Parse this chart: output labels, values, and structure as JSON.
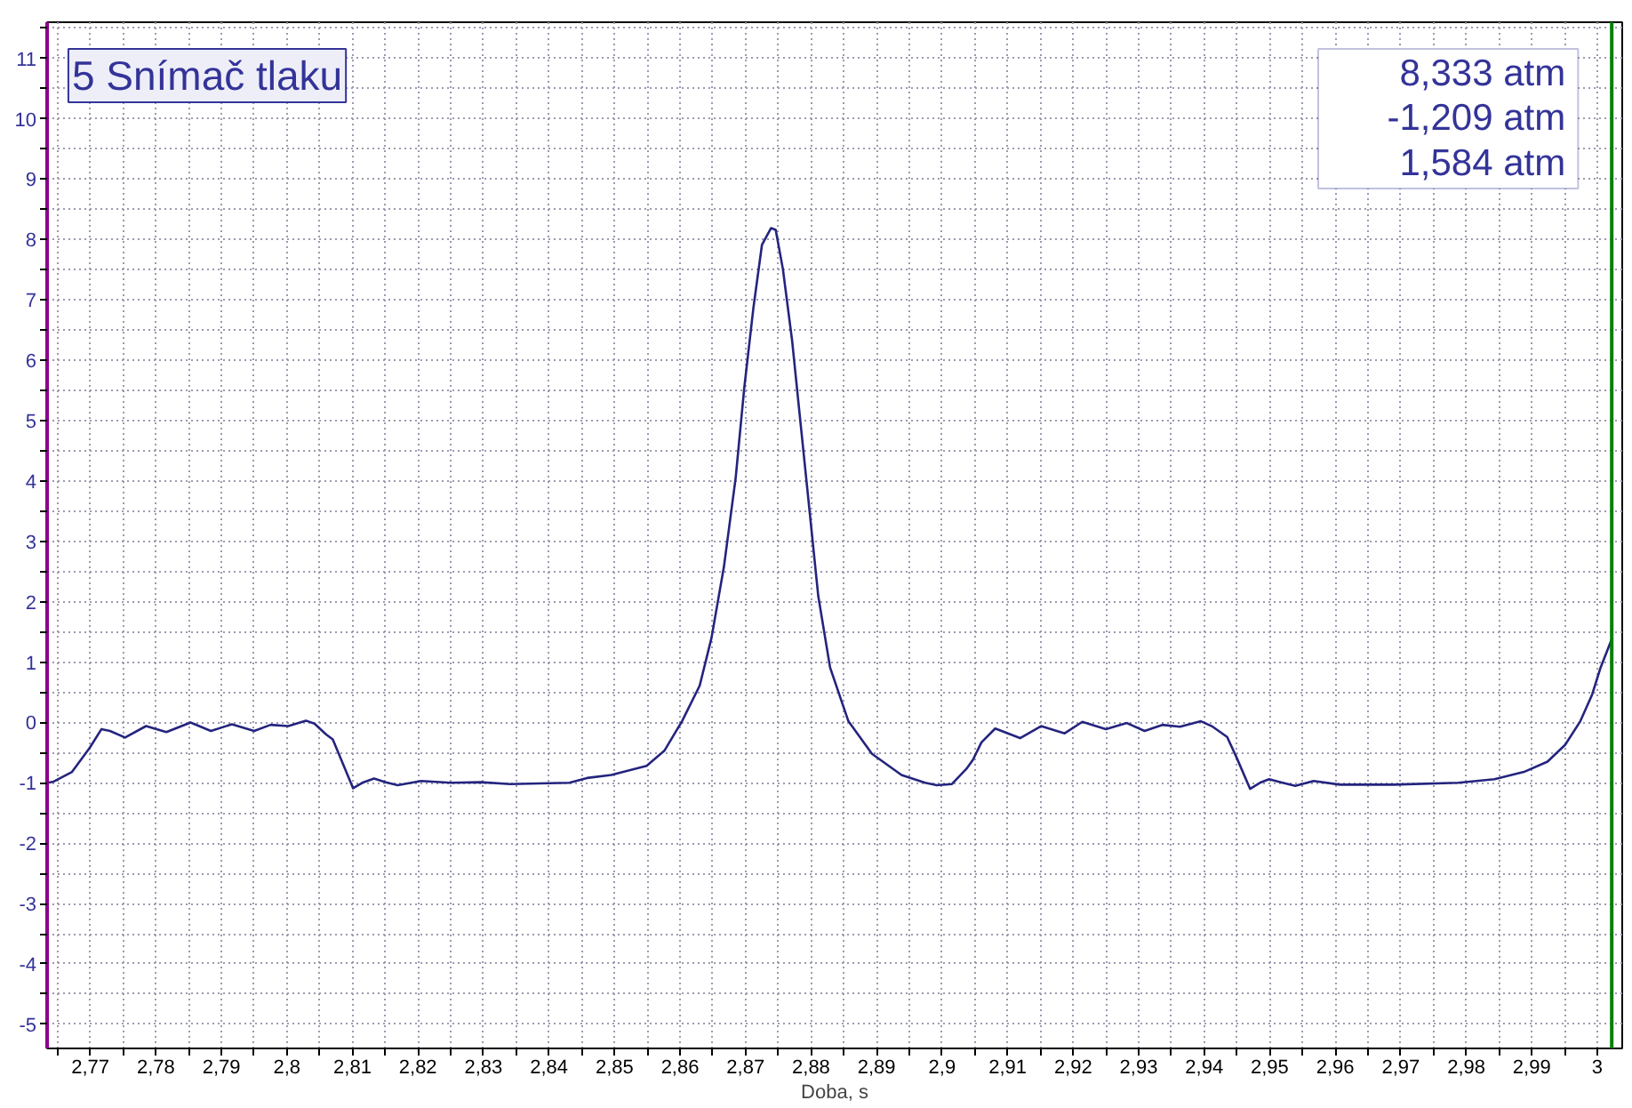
{
  "chart_data": {
    "type": "line",
    "xlabel": "Doba, s",
    "annotations": [
      "5 Snímač tlaku",
      "8,333 atm",
      "-1,209 atm",
      "1,584 atm"
    ],
    "xlim": [
      2.7634,
      3.0038
    ],
    "ylim": [
      -5.4,
      11.6
    ],
    "xticks": [
      {
        "value": 2.765,
        "label": null
      },
      {
        "value": 2.77,
        "label": "2,77"
      },
      {
        "value": 2.775,
        "label": null
      },
      {
        "value": 2.78,
        "label": "2,78"
      },
      {
        "value": 2.785,
        "label": null
      },
      {
        "value": 2.79,
        "label": "2,79"
      },
      {
        "value": 2.795,
        "label": null
      },
      {
        "value": 2.8,
        "label": "2,8"
      },
      {
        "value": 2.805,
        "label": null
      },
      {
        "value": 2.81,
        "label": "2,81"
      },
      {
        "value": 2.815,
        "label": null
      },
      {
        "value": 2.82,
        "label": "2,82"
      },
      {
        "value": 2.825,
        "label": null
      },
      {
        "value": 2.83,
        "label": "2,83"
      },
      {
        "value": 2.835,
        "label": null
      },
      {
        "value": 2.84,
        "label": "2,84"
      },
      {
        "value": 2.845,
        "label": null
      },
      {
        "value": 2.85,
        "label": "2,85"
      },
      {
        "value": 2.855,
        "label": null
      },
      {
        "value": 2.86,
        "label": "2,86"
      },
      {
        "value": 2.865,
        "label": null
      },
      {
        "value": 2.87,
        "label": "2,87"
      },
      {
        "value": 2.875,
        "label": null
      },
      {
        "value": 2.88,
        "label": "2,88"
      },
      {
        "value": 2.885,
        "label": null
      },
      {
        "value": 2.89,
        "label": "2,89"
      },
      {
        "value": 2.895,
        "label": null
      },
      {
        "value": 2.9,
        "label": "2,9"
      },
      {
        "value": 2.905,
        "label": null
      },
      {
        "value": 2.91,
        "label": "2,91"
      },
      {
        "value": 2.915,
        "label": null
      },
      {
        "value": 2.92,
        "label": "2,92"
      },
      {
        "value": 2.925,
        "label": null
      },
      {
        "value": 2.93,
        "label": "2,93"
      },
      {
        "value": 2.935,
        "label": null
      },
      {
        "value": 2.94,
        "label": "2,94"
      },
      {
        "value": 2.945,
        "label": null
      },
      {
        "value": 2.95,
        "label": "2,95"
      },
      {
        "value": 2.955,
        "label": null
      },
      {
        "value": 2.96,
        "label": "2,96"
      },
      {
        "value": 2.965,
        "label": null
      },
      {
        "value": 2.97,
        "label": "2,97"
      },
      {
        "value": 2.975,
        "label": null
      },
      {
        "value": 2.98,
        "label": "2,98"
      },
      {
        "value": 2.985,
        "label": null
      },
      {
        "value": 2.99,
        "label": "2,99"
      },
      {
        "value": 2.995,
        "label": null
      },
      {
        "value": 3,
        "label": "3"
      }
    ],
    "yticks": [
      -5,
      {
        "value": -4.5,
        "label": null
      },
      -4,
      {
        "value": -3.5,
        "label": null
      },
      -3,
      {
        "value": -2.5,
        "label": null
      },
      -2,
      {
        "value": -1.5,
        "label": null
      },
      -1,
      {
        "value": -0.5,
        "label": null
      },
      0,
      {
        "value": 0.5,
        "label": null
      },
      1,
      {
        "value": 1.5,
        "label": null
      },
      2,
      {
        "value": 2.5,
        "label": null
      },
      3,
      {
        "value": 3.5,
        "label": null
      },
      4,
      {
        "value": 4.5,
        "label": null
      },
      5,
      {
        "value": 5.5,
        "label": null
      },
      6,
      {
        "value": 6.5,
        "label": null
      },
      7,
      {
        "value": 7.5,
        "label": null
      },
      8,
      {
        "value": 8.5,
        "label": null
      },
      9,
      {
        "value": 9.5,
        "label": null
      },
      10,
      {
        "value": 10.5,
        "label": null
      },
      11,
      {
        "value": 11.5,
        "label": null
      }
    ],
    "grid": true,
    "ref_lines": [
      {
        "axis": "x",
        "value": 3.0022,
        "color": "#008000"
      }
    ],
    "series": [
      {
        "color": "#24247f",
        "x": [
          2.7635,
          2.7644,
          2.7672,
          2.7699,
          2.7717,
          2.773,
          2.7753,
          2.7785,
          2.7816,
          2.7853,
          2.7884,
          2.7916,
          2.795,
          2.7975,
          2.8002,
          2.8029,
          2.8042,
          2.806,
          2.807,
          2.8083,
          2.8101,
          2.8115,
          2.8133,
          2.8151,
          2.8169,
          2.8205,
          2.825,
          2.8296,
          2.8341,
          2.8431,
          2.8458,
          2.8495,
          2.8549,
          2.8576,
          2.8603,
          2.863,
          2.8648,
          2.8667,
          2.8685,
          2.8698,
          2.8712,
          2.8725,
          2.8739,
          2.8746,
          2.8757,
          2.8771,
          2.8784,
          2.8798,
          2.8811,
          2.8829,
          2.8857,
          2.8893,
          2.8938,
          2.8974,
          2.8992,
          2.9015,
          2.9037,
          2.9047,
          2.906,
          2.9081,
          2.9119,
          2.9151,
          2.9187,
          2.9214,
          2.925,
          2.9282,
          2.9309,
          2.9336,
          2.9363,
          2.9395,
          2.9413,
          2.9435,
          2.9449,
          2.947,
          2.9485,
          2.9499,
          2.9517,
          2.9539,
          2.9567,
          2.9607,
          2.9689,
          2.9788,
          2.9843,
          2.9888,
          2.9924,
          2.9951,
          2.9974,
          2.9992,
          3.0005,
          3.0022
        ],
        "values": [
          -1.0,
          -0.98,
          -0.82,
          -0.42,
          -0.11,
          -0.14,
          -0.25,
          -0.06,
          -0.16,
          0.0,
          -0.14,
          -0.03,
          -0.14,
          -0.04,
          -0.06,
          0.03,
          -0.02,
          -0.2,
          -0.28,
          -0.62,
          -1.09,
          -1.0,
          -0.93,
          -0.99,
          -1.04,
          -0.97,
          -1.0,
          -0.99,
          -1.02,
          -1.0,
          -0.92,
          -0.87,
          -0.72,
          -0.47,
          0.02,
          0.61,
          1.4,
          2.58,
          4.06,
          5.54,
          6.87,
          7.91,
          8.19,
          8.16,
          7.51,
          6.33,
          4.95,
          3.47,
          2.09,
          0.91,
          0.02,
          -0.52,
          -0.87,
          -1.0,
          -1.04,
          -1.02,
          -0.77,
          -0.62,
          -0.33,
          -0.1,
          -0.26,
          -0.06,
          -0.18,
          0.01,
          -0.11,
          -0.01,
          -0.14,
          -0.04,
          -0.07,
          0.02,
          -0.07,
          -0.24,
          -0.57,
          -1.1,
          -1.0,
          -0.94,
          -0.99,
          -1.05,
          -0.97,
          -1.03,
          -1.03,
          -1.0,
          -0.94,
          -0.82,
          -0.65,
          -0.37,
          0.02,
          0.46,
          0.91,
          1.38
        ]
      }
    ]
  }
}
